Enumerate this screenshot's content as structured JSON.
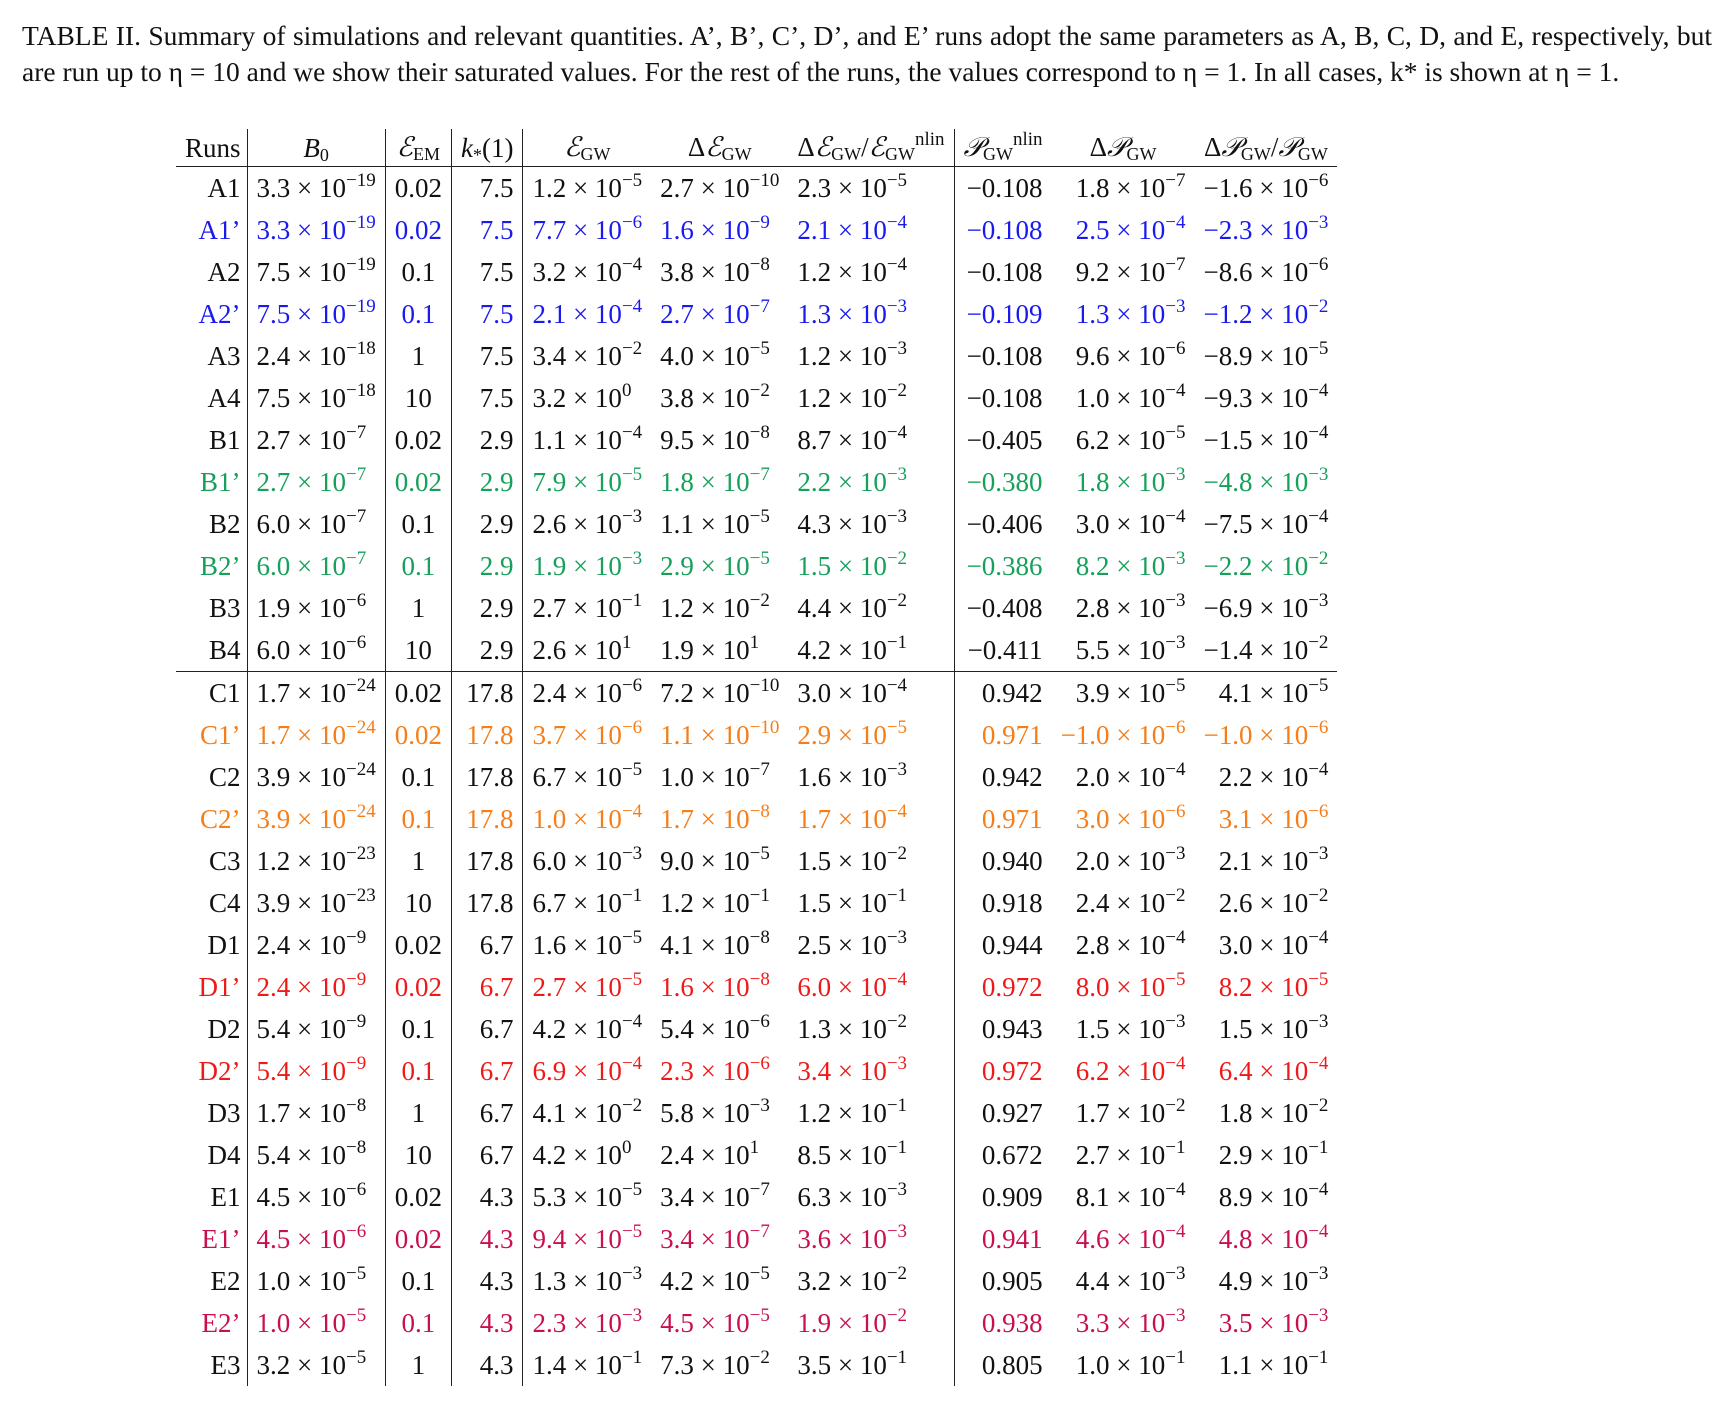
{
  "caption": "TABLE II. Summary of simulations and relevant quantities. A’, B’, C’, D’, and E’ runs adopt the same parameters as A, B, C, D, and E, respectively, but are run up to η = 10 and we show their saturated values. For the rest of the runs, the values correspond to η = 1. In all cases, k* is shown at η = 1.",
  "headers": {
    "runs": "Runs",
    "b0": "B₀",
    "eem": "ℰ_EM",
    "kstar": "k*(1)",
    "egw": "ℰ_GW",
    "degw": "Δℰ_GW",
    "degw_ratio": "Δℰ_GW/ℰ_GW^nlin",
    "pgw": "𝒫_GW^nlin",
    "dpgw": "Δ𝒫_GW",
    "dpgw_ratio": "Δ𝒫_GW/𝒫_GW"
  },
  "colors": {
    "blue": "#1a1aee",
    "green": "#16a05a",
    "orange": "#f57e1a",
    "red": "#ee1a1a",
    "crimson": "#c8104e"
  },
  "rows": [
    {
      "run": "A1",
      "b0": "3.3 × 10",
      "b0e": "−19",
      "eem": "0.02",
      "k": "7.5",
      "egw": "1.2 × 10",
      "egwe": "−5",
      "degw": "2.7 × 10",
      "degwe": "−10",
      "ratio": "2.3 × 10",
      "ratioe": "−5",
      "p": "−0.108",
      "dp": "1.8 × 10",
      "dpe": "−7",
      "dpr": "−1.6 × 10",
      "dpre": "−6",
      "color": ""
    },
    {
      "run": "A1’",
      "b0": "3.3 × 10",
      "b0e": "−19",
      "eem": "0.02",
      "k": "7.5",
      "egw": "7.7 × 10",
      "egwe": "−6",
      "degw": "1.6 × 10",
      "degwe": "−9",
      "ratio": "2.1 × 10",
      "ratioe": "−4",
      "p": "−0.108",
      "dp": "2.5 × 10",
      "dpe": "−4",
      "dpr": "−2.3 × 10",
      "dpre": "−3",
      "color": "blue"
    },
    {
      "run": "A2",
      "b0": "7.5 × 10",
      "b0e": "−19",
      "eem": "0.1",
      "k": "7.5",
      "egw": "3.2 × 10",
      "egwe": "−4",
      "degw": "3.8 × 10",
      "degwe": "−8",
      "ratio": "1.2 × 10",
      "ratioe": "−4",
      "p": "−0.108",
      "dp": "9.2 × 10",
      "dpe": "−7",
      "dpr": "−8.6 × 10",
      "dpre": "−6",
      "color": ""
    },
    {
      "run": "A2’",
      "b0": "7.5 × 10",
      "b0e": "−19",
      "eem": "0.1",
      "k": "7.5",
      "egw": "2.1 × 10",
      "egwe": "−4",
      "degw": "2.7 × 10",
      "degwe": "−7",
      "ratio": "1.3 × 10",
      "ratioe": "−3",
      "p": "−0.109",
      "dp": "1.3 × 10",
      "dpe": "−3",
      "dpr": "−1.2 × 10",
      "dpre": "−2",
      "color": "blue"
    },
    {
      "run": "A3",
      "b0": "2.4 × 10",
      "b0e": "−18",
      "eem": "1",
      "k": "7.5",
      "egw": "3.4 × 10",
      "egwe": "−2",
      "degw": "4.0 × 10",
      "degwe": "−5",
      "ratio": "1.2 × 10",
      "ratioe": "−3",
      "p": "−0.108",
      "dp": "9.6 × 10",
      "dpe": "−6",
      "dpr": "−8.9 × 10",
      "dpre": "−5",
      "color": ""
    },
    {
      "run": "A4",
      "b0": "7.5 × 10",
      "b0e": "−18",
      "eem": "10",
      "k": "7.5",
      "egw": "3.2 × 10",
      "egwe": "0",
      "degw": "3.8 × 10",
      "degwe": "−2",
      "ratio": "1.2 × 10",
      "ratioe": "−2",
      "p": "−0.108",
      "dp": "1.0 × 10",
      "dpe": "−4",
      "dpr": "−9.3 × 10",
      "dpre": "−4",
      "color": ""
    },
    {
      "run": "B1",
      "b0": "2.7 × 10",
      "b0e": "−7",
      "eem": "0.02",
      "k": "2.9",
      "egw": "1.1 × 10",
      "egwe": "−4",
      "degw": "9.5 × 10",
      "degwe": "−8",
      "ratio": "8.7 × 10",
      "ratioe": "−4",
      "p": "−0.405",
      "dp": "6.2 × 10",
      "dpe": "−5",
      "dpr": "−1.5 × 10",
      "dpre": "−4",
      "color": ""
    },
    {
      "run": "B1’",
      "b0": "2.7 × 10",
      "b0e": "−7",
      "eem": "0.02",
      "k": "2.9",
      "egw": "7.9 × 10",
      "egwe": "−5",
      "degw": "1.8 × 10",
      "degwe": "−7",
      "ratio": "2.2 × 10",
      "ratioe": "−3",
      "p": "−0.380",
      "dp": "1.8 × 10",
      "dpe": "−3",
      "dpr": "−4.8 × 10",
      "dpre": "−3",
      "color": "green"
    },
    {
      "run": "B2",
      "b0": "6.0 × 10",
      "b0e": "−7",
      "eem": "0.1",
      "k": "2.9",
      "egw": "2.6 × 10",
      "egwe": "−3",
      "degw": "1.1 × 10",
      "degwe": "−5",
      "ratio": "4.3 × 10",
      "ratioe": "−3",
      "p": "−0.406",
      "dp": "3.0 × 10",
      "dpe": "−4",
      "dpr": "−7.5 × 10",
      "dpre": "−4",
      "color": ""
    },
    {
      "run": "B2’",
      "b0": "6.0 × 10",
      "b0e": "−7",
      "eem": "0.1",
      "k": "2.9",
      "egw": "1.9 × 10",
      "egwe": "−3",
      "degw": "2.9 × 10",
      "degwe": "−5",
      "ratio": "1.5 × 10",
      "ratioe": "−2",
      "p": "−0.386",
      "dp": "8.2 × 10",
      "dpe": "−3",
      "dpr": "−2.2 × 10",
      "dpre": "−2",
      "color": "green"
    },
    {
      "run": "B3",
      "b0": "1.9 × 10",
      "b0e": "−6",
      "eem": "1",
      "k": "2.9",
      "egw": "2.7 × 10",
      "egwe": "−1",
      "degw": "1.2 × 10",
      "degwe": "−2",
      "ratio": "4.4 × 10",
      "ratioe": "−2",
      "p": "−0.408",
      "dp": "2.8 × 10",
      "dpe": "−3",
      "dpr": "−6.9 × 10",
      "dpre": "−3",
      "color": ""
    },
    {
      "run": "B4",
      "b0": "6.0 × 10",
      "b0e": "−6",
      "eem": "10",
      "k": "2.9",
      "egw": "2.6 × 10",
      "egwe": "1",
      "degw": "1.9 × 10",
      "degwe": "1",
      "ratio": "4.2 × 10",
      "ratioe": "−1",
      "p": "−0.411",
      "dp": "5.5 × 10",
      "dpe": "−3",
      "dpr": "−1.4 × 10",
      "dpre": "−2",
      "color": ""
    },
    {
      "run": "C1",
      "b0": "1.7 × 10",
      "b0e": "−24",
      "eem": "0.02",
      "k": "17.8",
      "egw": "2.4 × 10",
      "egwe": "−6",
      "degw": "7.2 × 10",
      "degwe": "−10",
      "ratio": "3.0 × 10",
      "ratioe": "−4",
      "p": "0.942",
      "dp": "3.9 × 10",
      "dpe": "−5",
      "dpr": "4.1 × 10",
      "dpre": "−5",
      "color": "",
      "sep": true
    },
    {
      "run": "C1’",
      "b0": "1.7 × 10",
      "b0e": "−24",
      "eem": "0.02",
      "k": "17.8",
      "egw": "3.7 × 10",
      "egwe": "−6",
      "degw": "1.1 × 10",
      "degwe": "−10",
      "ratio": "2.9 × 10",
      "ratioe": "−5",
      "p": "0.971",
      "dp": "−1.0 × 10",
      "dpe": "−6",
      "dpr": "−1.0 × 10",
      "dpre": "−6",
      "color": "orange"
    },
    {
      "run": "C2",
      "b0": "3.9 × 10",
      "b0e": "−24",
      "eem": "0.1",
      "k": "17.8",
      "egw": "6.7 × 10",
      "egwe": "−5",
      "degw": "1.0 × 10",
      "degwe": "−7",
      "ratio": "1.6 × 10",
      "ratioe": "−3",
      "p": "0.942",
      "dp": "2.0 × 10",
      "dpe": "−4",
      "dpr": "2.2 × 10",
      "dpre": "−4",
      "color": ""
    },
    {
      "run": "C2’",
      "b0": "3.9 × 10",
      "b0e": "−24",
      "eem": "0.1",
      "k": "17.8",
      "egw": "1.0 × 10",
      "egwe": "−4",
      "degw": "1.7 × 10",
      "degwe": "−8",
      "ratio": "1.7 × 10",
      "ratioe": "−4",
      "p": "0.971",
      "dp": "3.0 × 10",
      "dpe": "−6",
      "dpr": "3.1 × 10",
      "dpre": "−6",
      "color": "orange"
    },
    {
      "run": "C3",
      "b0": "1.2 × 10",
      "b0e": "−23",
      "eem": "1",
      "k": "17.8",
      "egw": "6.0 × 10",
      "egwe": "−3",
      "degw": "9.0 × 10",
      "degwe": "−5",
      "ratio": "1.5 × 10",
      "ratioe": "−2",
      "p": "0.940",
      "dp": "2.0 × 10",
      "dpe": "−3",
      "dpr": "2.1 × 10",
      "dpre": "−3",
      "color": ""
    },
    {
      "run": "C4",
      "b0": "3.9 × 10",
      "b0e": "−23",
      "eem": "10",
      "k": "17.8",
      "egw": "6.7 × 10",
      "egwe": "−1",
      "degw": "1.2 × 10",
      "degwe": "−1",
      "ratio": "1.5 × 10",
      "ratioe": "−1",
      "p": "0.918",
      "dp": "2.4 × 10",
      "dpe": "−2",
      "dpr": "2.6 × 10",
      "dpre": "−2",
      "color": ""
    },
    {
      "run": "D1",
      "b0": "2.4 × 10",
      "b0e": "−9",
      "eem": "0.02",
      "k": "6.7",
      "egw": "1.6 × 10",
      "egwe": "−5",
      "degw": "4.1 × 10",
      "degwe": "−8",
      "ratio": "2.5 × 10",
      "ratioe": "−3",
      "p": "0.944",
      "dp": "2.8 × 10",
      "dpe": "−4",
      "dpr": "3.0 × 10",
      "dpre": "−4",
      "color": ""
    },
    {
      "run": "D1’",
      "b0": "2.4 × 10",
      "b0e": "−9",
      "eem": "0.02",
      "k": "6.7",
      "egw": "2.7 × 10",
      "egwe": "−5",
      "degw": "1.6 × 10",
      "degwe": "−8",
      "ratio": "6.0 × 10",
      "ratioe": "−4",
      "p": "0.972",
      "dp": "8.0 × 10",
      "dpe": "−5",
      "dpr": "8.2 × 10",
      "dpre": "−5",
      "color": "red"
    },
    {
      "run": "D2",
      "b0": "5.4 × 10",
      "b0e": "−9",
      "eem": "0.1",
      "k": "6.7",
      "egw": "4.2 × 10",
      "egwe": "−4",
      "degw": "5.4 × 10",
      "degwe": "−6",
      "ratio": "1.3 × 10",
      "ratioe": "−2",
      "p": "0.943",
      "dp": "1.5 × 10",
      "dpe": "−3",
      "dpr": "1.5 × 10",
      "dpre": "−3",
      "color": ""
    },
    {
      "run": "D2’",
      "b0": "5.4 × 10",
      "b0e": "−9",
      "eem": "0.1",
      "k": "6.7",
      "egw": "6.9 × 10",
      "egwe": "−4",
      "degw": "2.3 × 10",
      "degwe": "−6",
      "ratio": "3.4 × 10",
      "ratioe": "−3",
      "p": "0.972",
      "dp": "6.2 × 10",
      "dpe": "−4",
      "dpr": "6.4 × 10",
      "dpre": "−4",
      "color": "red"
    },
    {
      "run": "D3",
      "b0": "1.7 × 10",
      "b0e": "−8",
      "eem": "1",
      "k": "6.7",
      "egw": "4.1 × 10",
      "egwe": "−2",
      "degw": "5.8 × 10",
      "degwe": "−3",
      "ratio": "1.2 × 10",
      "ratioe": "−1",
      "p": "0.927",
      "dp": "1.7 × 10",
      "dpe": "−2",
      "dpr": "1.8 × 10",
      "dpre": "−2",
      "color": ""
    },
    {
      "run": "D4",
      "b0": "5.4 × 10",
      "b0e": "−8",
      "eem": "10",
      "k": "6.7",
      "egw": "4.2 × 10",
      "egwe": "0",
      "degw": "2.4 × 10",
      "degwe": "1",
      "ratio": "8.5 × 10",
      "ratioe": "−1",
      "p": "0.672",
      "dp": "2.7 × 10",
      "dpe": "−1",
      "dpr": "2.9 × 10",
      "dpre": "−1",
      "color": ""
    },
    {
      "run": "E1",
      "b0": "4.5 × 10",
      "b0e": "−6",
      "eem": "0.02",
      "k": "4.3",
      "egw": "5.3 × 10",
      "egwe": "−5",
      "degw": "3.4 × 10",
      "degwe": "−7",
      "ratio": "6.3 × 10",
      "ratioe": "−3",
      "p": "0.909",
      "dp": "8.1 × 10",
      "dpe": "−4",
      "dpr": "8.9 × 10",
      "dpre": "−4",
      "color": ""
    },
    {
      "run": "E1’",
      "b0": "4.5 × 10",
      "b0e": "−6",
      "eem": "0.02",
      "k": "4.3",
      "egw": "9.4 × 10",
      "egwe": "−5",
      "degw": "3.4 × 10",
      "degwe": "−7",
      "ratio": "3.6 × 10",
      "ratioe": "−3",
      "p": "0.941",
      "dp": "4.6 × 10",
      "dpe": "−4",
      "dpr": "4.8 × 10",
      "dpre": "−4",
      "color": "crimson"
    },
    {
      "run": "E2",
      "b0": "1.0 × 10",
      "b0e": "−5",
      "eem": "0.1",
      "k": "4.3",
      "egw": "1.3 × 10",
      "egwe": "−3",
      "degw": "4.2 × 10",
      "degwe": "−5",
      "ratio": "3.2 × 10",
      "ratioe": "−2",
      "p": "0.905",
      "dp": "4.4 × 10",
      "dpe": "−3",
      "dpr": "4.9 × 10",
      "dpre": "−3",
      "color": ""
    },
    {
      "run": "E2’",
      "b0": "1.0 × 10",
      "b0e": "−5",
      "eem": "0.1",
      "k": "4.3",
      "egw": "2.3 × 10",
      "egwe": "−3",
      "degw": "4.5 × 10",
      "degwe": "−5",
      "ratio": "1.9 × 10",
      "ratioe": "−2",
      "p": "0.938",
      "dp": "3.3 × 10",
      "dpe": "−3",
      "dpr": "3.5 × 10",
      "dpre": "−3",
      "color": "crimson"
    },
    {
      "run": "E3",
      "b0": "3.2 × 10",
      "b0e": "−5",
      "eem": "1",
      "k": "4.3",
      "egw": "1.4 × 10",
      "egwe": "−1",
      "degw": "7.3 × 10",
      "degwe": "−2",
      "ratio": "3.5 × 10",
      "ratioe": "−1",
      "p": "0.805",
      "dp": "1.0 × 10",
      "dpe": "−1",
      "dpr": "1.1 × 10",
      "dpre": "−1",
      "color": ""
    }
  ]
}
